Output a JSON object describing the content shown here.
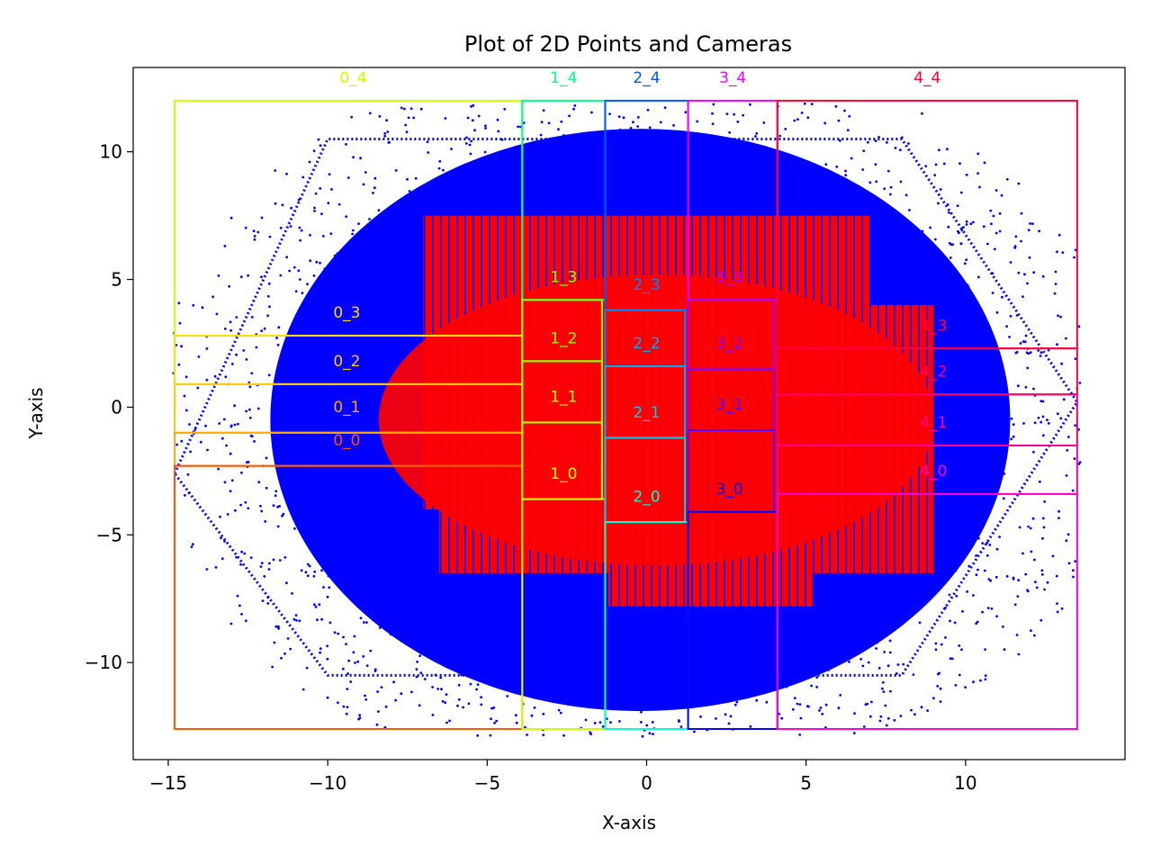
{
  "chart_data": {
    "type": "scatter",
    "title": "Plot of 2D Points and Cameras",
    "xlabel": "X-axis",
    "ylabel": "Y-axis",
    "xlim": [
      -16.1,
      15.0
    ],
    "ylim": [
      -13.8,
      13.3
    ],
    "xticks": [
      -15,
      -10,
      -5,
      0,
      5,
      10
    ],
    "yticks": [
      -10,
      -5,
      0,
      5,
      10
    ],
    "xtick_labels": [
      "−15",
      "−10",
      "−5",
      "0",
      "5",
      "10"
    ],
    "ytick_labels": [
      "−10",
      "−5",
      "0",
      "5",
      "10"
    ],
    "point_colors": {
      "points": "#0000ff",
      "cameras": "#ff0000"
    },
    "points_region": {
      "description_only_for_drawing": false,
      "ellipse_center": [
        -0.2,
        -0.5
      ],
      "ellipse_radii": [
        11.6,
        11.4
      ],
      "outer_hexagon": [
        [
          -14.8,
          -2.6
        ],
        [
          -10.0,
          10.5
        ],
        [
          8.0,
          10.5
        ],
        [
          13.5,
          0.2
        ],
        [
          8.0,
          -10.5
        ],
        [
          -10.0,
          -10.5
        ]
      ]
    },
    "camera_grid_region": [
      [
        -10,
        -4
      ],
      [
        -7,
        -4
      ],
      [
        -7,
        7.5
      ],
      [
        7,
        7.5
      ],
      [
        7,
        4
      ],
      [
        9,
        4
      ],
      [
        9,
        -6.5
      ],
      [
        5.2,
        -6.5
      ],
      [
        5.2,
        -7.8
      ],
      [
        -1.2,
        -7.8
      ],
      [
        -1.2,
        -6.5
      ],
      [
        -6.5,
        -6.5
      ],
      [
        -6.5,
        -4
      ],
      [
        -10,
        -4
      ]
    ],
    "cells": [
      {
        "label": "0_4",
        "color": "#ccff00",
        "x": [
          -14.8,
          -3.9
        ],
        "y": [
          2.8,
          12.0
        ],
        "label_pos": [
          -9.2,
          12.7
        ]
      },
      {
        "label": "1_4",
        "color": "#00ff88",
        "x": [
          -3.9,
          -1.3
        ],
        "y": [
          4.2,
          12.0
        ],
        "label_pos": [
          -2.6,
          12.7
        ]
      },
      {
        "label": "2_4",
        "color": "#0055ff",
        "x": [
          -1.3,
          1.3
        ],
        "y": [
          3.8,
          12.0
        ],
        "label_pos": [
          0.0,
          12.7
        ]
      },
      {
        "label": "3_4",
        "color": "#ee00ff",
        "x": [
          1.3,
          4.1
        ],
        "y": [
          4.2,
          12.0
        ],
        "label_pos": [
          2.7,
          12.7
        ]
      },
      {
        "label": "4_4",
        "color": "#ff0033",
        "x": [
          4.1,
          13.5
        ],
        "y": [
          2.3,
          12.0
        ],
        "label_pos": [
          8.8,
          12.7
        ]
      },
      {
        "label": "0_3",
        "color": "#ffdd00",
        "x": [
          -14.8,
          -3.9
        ],
        "y": [
          0.9,
          2.8
        ],
        "label_pos": [
          -9.4,
          3.5
        ]
      },
      {
        "label": "0_2",
        "color": "#ffcc00",
        "x": [
          -14.8,
          -3.9
        ],
        "y": [
          -1.0,
          0.9
        ],
        "label_pos": [
          -9.4,
          1.6
        ]
      },
      {
        "label": "0_1",
        "color": "#ffaa00",
        "x": [
          -14.8,
          -3.9
        ],
        "y": [
          -2.3,
          -1.0
        ],
        "label_pos": [
          -9.4,
          -0.2
        ]
      },
      {
        "label": "0_0",
        "color": "#ff5500",
        "x": [
          -14.8,
          -3.9
        ],
        "y": [
          -12.6,
          -2.3
        ],
        "label_pos": [
          -9.4,
          -1.5
        ]
      },
      {
        "label": "1_3",
        "color": "#88ff00",
        "x": [
          -3.9,
          -1.4
        ],
        "y": [
          1.8,
          4.2
        ],
        "label_pos": [
          -2.6,
          4.9
        ]
      },
      {
        "label": "1_2",
        "color": "#88ff00",
        "x": [
          -3.9,
          -1.4
        ],
        "y": [
          -0.6,
          1.8
        ],
        "label_pos": [
          -2.6,
          2.5
        ]
      },
      {
        "label": "1_1",
        "color": "#aaff00",
        "x": [
          -3.9,
          -1.4
        ],
        "y": [
          -3.6,
          -0.6
        ],
        "label_pos": [
          -2.6,
          0.2
        ]
      },
      {
        "label": "1_0",
        "color": "#ccff00",
        "x": [
          -3.9,
          -1.3
        ],
        "y": [
          -12.6,
          -3.6
        ],
        "label_pos": [
          -2.6,
          -2.8
        ]
      },
      {
        "label": "2_3",
        "color": "#0088ff",
        "x": [
          -1.3,
          1.2
        ],
        "y": [
          1.6,
          3.8
        ],
        "label_pos": [
          0.0,
          4.6
        ]
      },
      {
        "label": "2_2",
        "color": "#00aaff",
        "x": [
          -1.3,
          1.2
        ],
        "y": [
          -1.2,
          1.6
        ],
        "label_pos": [
          0.0,
          2.3
        ]
      },
      {
        "label": "2_1",
        "color": "#00ccee",
        "x": [
          -1.3,
          1.2
        ],
        "y": [
          -4.5,
          -1.2
        ],
        "label_pos": [
          0.0,
          -0.4
        ]
      },
      {
        "label": "2_0",
        "color": "#00ffcc",
        "x": [
          -1.3,
          1.3
        ],
        "y": [
          -12.6,
          -4.5
        ],
        "label_pos": [
          0.0,
          -3.7
        ]
      },
      {
        "label": "3_3",
        "color": "#aa00ff",
        "x": [
          1.3,
          4.0
        ],
        "y": [
          1.5,
          4.2
        ],
        "label_pos": [
          2.6,
          4.9
        ]
      },
      {
        "label": "3_2",
        "color": "#8800ff",
        "x": [
          1.3,
          4.0
        ],
        "y": [
          -0.9,
          1.5
        ],
        "label_pos": [
          2.6,
          2.3
        ]
      },
      {
        "label": "3_1",
        "color": "#5500ff",
        "x": [
          1.3,
          4.0
        ],
        "y": [
          -4.1,
          -0.9
        ],
        "label_pos": [
          2.6,
          -0.1
        ]
      },
      {
        "label": "3_0",
        "color": "#0000ff",
        "x": [
          1.3,
          4.1
        ],
        "y": [
          -12.6,
          -4.1
        ],
        "label_pos": [
          2.6,
          -3.4
        ]
      },
      {
        "label": "4_3",
        "color": "#ff0044",
        "x": [
          4.1,
          13.5
        ],
        "y": [
          0.5,
          2.3
        ],
        "label_pos": [
          9.0,
          3.0
        ]
      },
      {
        "label": "4_2",
        "color": "#ff0066",
        "x": [
          4.1,
          13.5
        ],
        "y": [
          -1.5,
          0.5
        ],
        "label_pos": [
          9.0,
          1.2
        ]
      },
      {
        "label": "4_1",
        "color": "#ff0099",
        "x": [
          4.1,
          13.5
        ],
        "y": [
          -3.4,
          -1.5
        ],
        "label_pos": [
          9.0,
          -0.8
        ]
      },
      {
        "label": "4_0",
        "color": "#ff00cc",
        "x": [
          4.1,
          13.5
        ],
        "y": [
          -12.6,
          -3.4
        ],
        "label_pos": [
          9.0,
          -2.7
        ]
      }
    ]
  }
}
